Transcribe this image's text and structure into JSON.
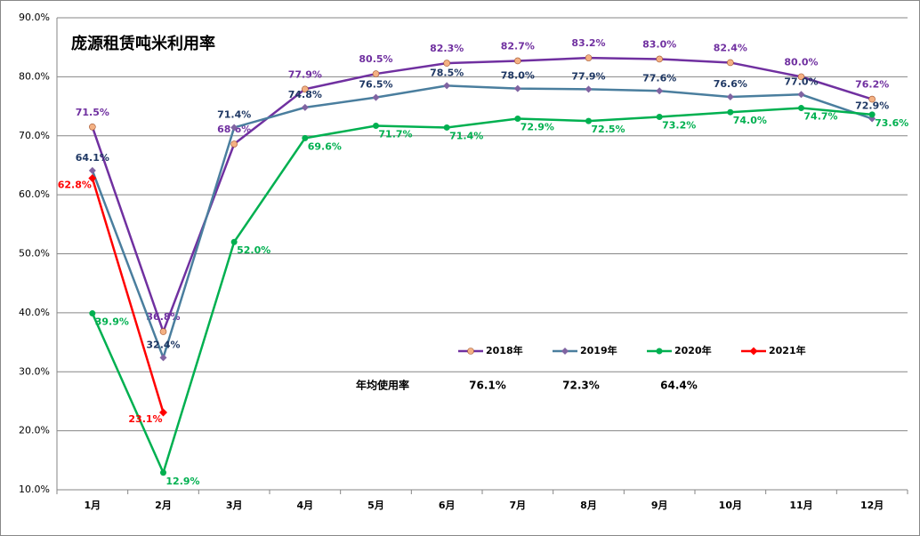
{
  "chart_data": {
    "type": "line",
    "title": "庞源租赁吨米利用率",
    "categories": [
      "1月",
      "2月",
      "3月",
      "4月",
      "5月",
      "6月",
      "7月",
      "8月",
      "9月",
      "10月",
      "11月",
      "12月"
    ],
    "series": [
      {
        "name": "2018年",
        "color": "#7030a0",
        "values": [
          71.5,
          36.8,
          68.6,
          77.9,
          80.5,
          82.3,
          82.7,
          83.2,
          83.0,
          82.4,
          80.0,
          76.2
        ],
        "value_labels": [
          "71.5%",
          "36.8%",
          "68.6%",
          "77.9%",
          "80.5%",
          "82.3%",
          "82.7%",
          "83.2%",
          "83.0%",
          "82.4%",
          "80.0%",
          "76.2%"
        ]
      },
      {
        "name": "2019年",
        "color": "#4a7e9e",
        "values": [
          64.1,
          32.4,
          71.4,
          74.8,
          76.5,
          78.5,
          78.0,
          77.9,
          77.6,
          76.6,
          77.0,
          72.9
        ],
        "value_labels": [
          "64.1%",
          "32.4%",
          "71.4%",
          "74.8%",
          "76.5%",
          "78.5%",
          "78.0%",
          "77.9%",
          "77.6%",
          "76.6%",
          "77.0%",
          "72.9%"
        ]
      },
      {
        "name": "2020年",
        "color": "#00b050",
        "values": [
          39.9,
          12.9,
          52.0,
          69.6,
          71.7,
          71.4,
          72.9,
          72.5,
          73.2,
          74.0,
          74.7,
          73.6
        ],
        "value_labels": [
          "39.9%",
          "12.9%",
          "52.0%",
          "69.6%",
          "71.7%",
          "71.4%",
          "72.9%",
          "72.5%",
          "73.2%",
          "74.0%",
          "74.7%",
          "73.6%"
        ]
      },
      {
        "name": "2021年",
        "color": "#ff0000",
        "values": [
          62.8,
          23.1,
          null,
          null,
          null,
          null,
          null,
          null,
          null,
          null,
          null,
          null
        ],
        "value_labels": [
          "62.8%",
          "23.1%",
          null,
          null,
          null,
          null,
          null,
          null,
          null,
          null,
          null,
          null
        ]
      }
    ],
    "ylim": [
      10,
      90
    ],
    "yticks": [
      {
        "value": 10,
        "label": "10.0%"
      },
      {
        "value": 20,
        "label": "20.0%"
      },
      {
        "value": 30,
        "label": "30.0%"
      },
      {
        "value": 40,
        "label": "40.0%"
      },
      {
        "value": 50,
        "label": "50.0%"
      },
      {
        "value": 60,
        "label": "60.0%"
      },
      {
        "value": 70,
        "label": "70.0%"
      },
      {
        "value": 80,
        "label": "80.0%"
      },
      {
        "value": 90,
        "label": "90.0%"
      }
    ],
    "grid": true,
    "annual_average": {
      "label": "年均使用率",
      "values": [
        "76.1%",
        "72.3%",
        "64.4%"
      ]
    }
  }
}
